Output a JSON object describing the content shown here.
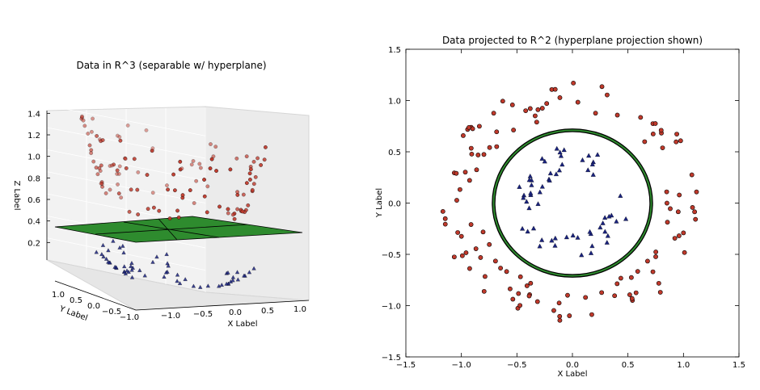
{
  "chart_data": [
    {
      "type": "scatter",
      "title": "Data in R^3 (separable w/ hyperplane)",
      "xlabel": "X Label",
      "ylabel": "Y Label",
      "zlabel": "Z Label",
      "x_ticks": [
        "−1.0",
        "−0.5",
        "0.0",
        "0.5",
        "1.0"
      ],
      "y_ticks": [
        "1.0",
        "0.5",
        "0.0",
        "−0.5",
        "−1.0"
      ],
      "z_ticks": [
        "1.4",
        "1.2",
        "1.0",
        "0.8",
        "0.6",
        "0.4",
        "0.2"
      ],
      "xlim": [
        -1.2,
        1.2
      ],
      "ylim": [
        -1.2,
        1.2
      ],
      "zlim": [
        0.0,
        1.5
      ],
      "hyperplane_z": 0.5,
      "grid": true,
      "colors": {
        "outer": "#c0392b",
        "inner": "#1a237e",
        "plane": "#2e8b2e"
      },
      "outer_ring": {
        "r_min": 0.85,
        "r_max": 1.2,
        "n_points": 120,
        "z": "x^2+y^2"
      },
      "inner_ring": {
        "r_min": 0.3,
        "r_max": 0.55,
        "n_points": 60,
        "z": "x^2+y^2"
      }
    },
    {
      "type": "scatter",
      "title": "Data projected to R^2 (hyperplane projection shown)",
      "xlabel": "X Label",
      "ylabel": "Y Label",
      "xlim": [
        -1.5,
        1.5
      ],
      "ylim": [
        -1.5,
        1.5
      ],
      "x_ticks": [
        "−1.5",
        "−1.0",
        "−0.5",
        "0.0",
        "0.5",
        "1.0",
        "1.5"
      ],
      "y_ticks": [
        "1.5",
        "1.0",
        "0.5",
        "0.0",
        "−0.5",
        "−1.0",
        "−1.5"
      ],
      "grid": false,
      "colors": {
        "outer": "#c0392b",
        "inner": "#1a237e",
        "ring": "#2e8b2e"
      },
      "decision_circle_radius": 0.71,
      "outer_ring": {
        "r_min": 0.85,
        "r_max": 1.2,
        "n_points": 120
      },
      "inner_ring": {
        "r_min": 0.3,
        "r_max": 0.55,
        "n_points": 60
      }
    }
  ]
}
